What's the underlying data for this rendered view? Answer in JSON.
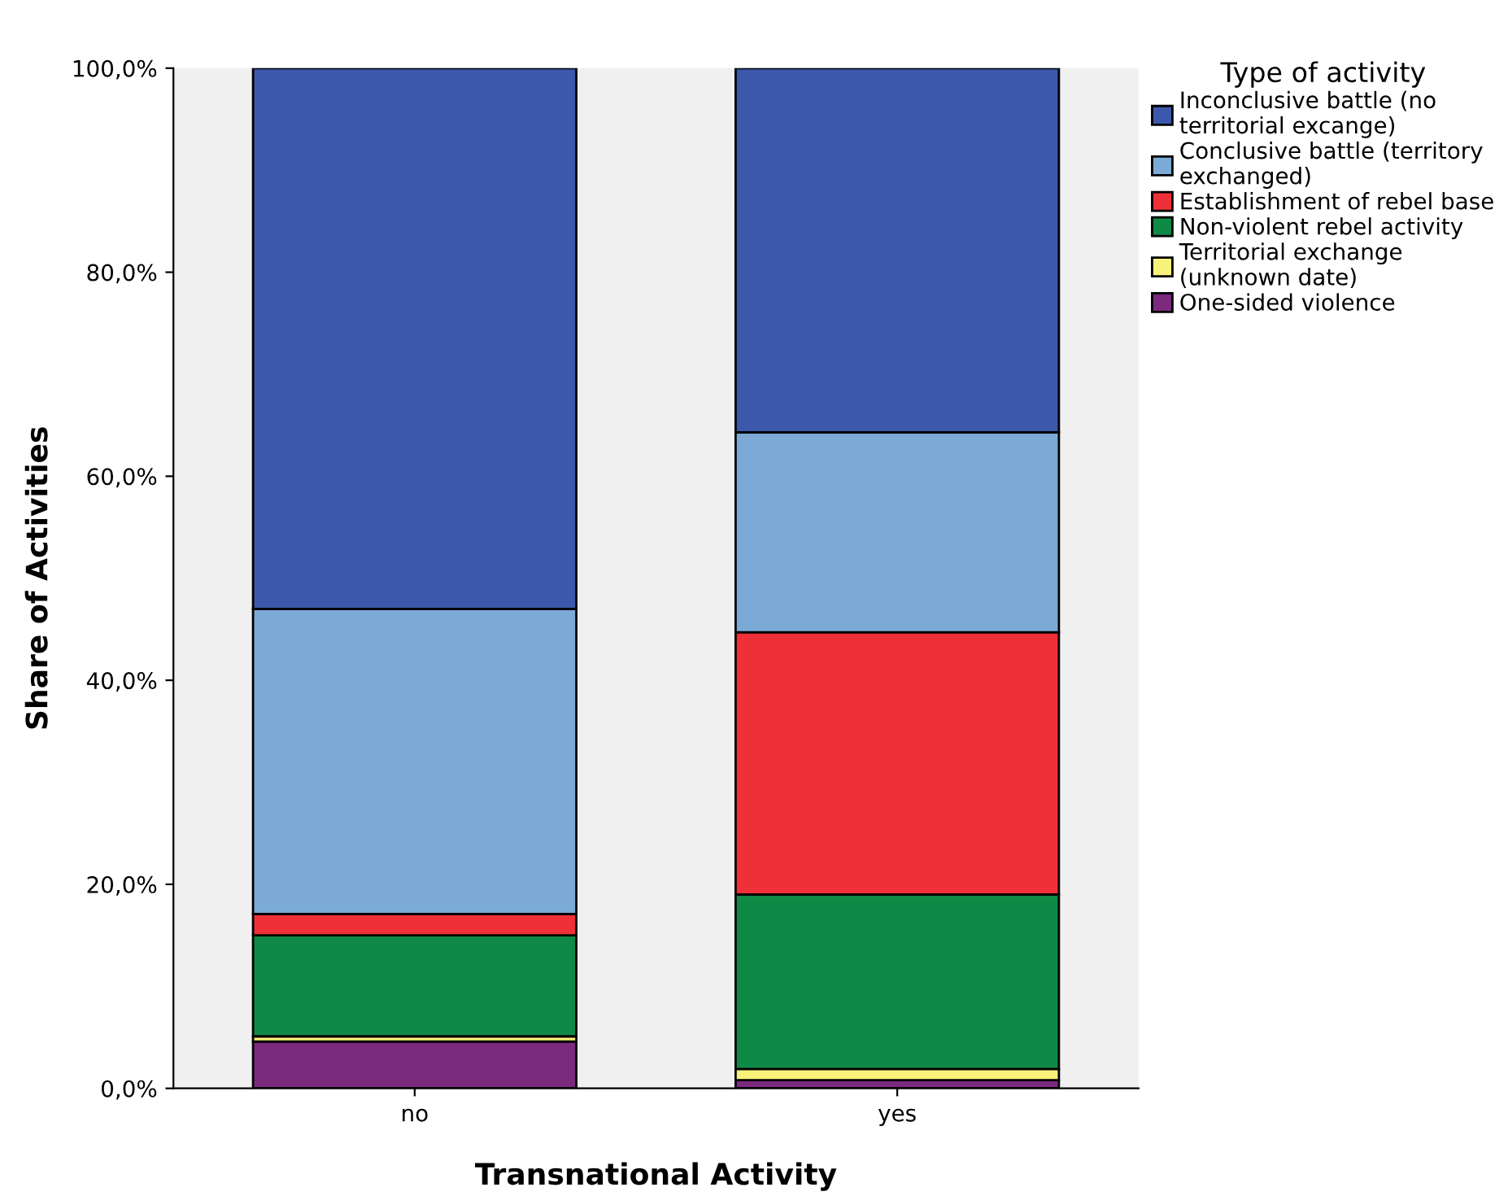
{
  "chart_data": {
    "type": "bar",
    "stacked": true,
    "xlabel": "Transnational Activity",
    "ylabel": "Share of Activities",
    "legend_title": "Type of activity",
    "legend": "right",
    "grid": false,
    "categories": [
      "no",
      "yes"
    ],
    "series": [
      {
        "name": "One-sided violence",
        "color": "#7b2a7e",
        "values": [
          4.6,
          0.8
        ]
      },
      {
        "name": "Territorial exchange\n(unknown date)",
        "color": "#f8f27a",
        "values": [
          0.5,
          1.1
        ]
      },
      {
        "name": "Non-violent rebel activity",
        "color": "#0f8a46",
        "values": [
          9.9,
          17.1
        ]
      },
      {
        "name": "Establishment of rebel base",
        "color": "#ef3038",
        "values": [
          2.1,
          25.7
        ]
      },
      {
        "name": "Conclusive battle (territory\nexchanged)",
        "color": "#7baad6",
        "values": [
          29.9,
          19.6
        ]
      },
      {
        "name": "Inconclusive battle (no\nterritorial excange)",
        "color": "#3c58ad",
        "values": [
          53.0,
          35.7
        ]
      }
    ],
    "ylim": [
      0,
      100
    ],
    "yticks": [
      {
        "value": 0,
        "label": "0,0%"
      },
      {
        "value": 20,
        "label": "20,0%"
      },
      {
        "value": 40,
        "label": "40,0%"
      },
      {
        "value": 60,
        "label": "60,0%"
      },
      {
        "value": 80,
        "label": "80,0%"
      },
      {
        "value": 100,
        "label": "100,0%"
      }
    ]
  }
}
